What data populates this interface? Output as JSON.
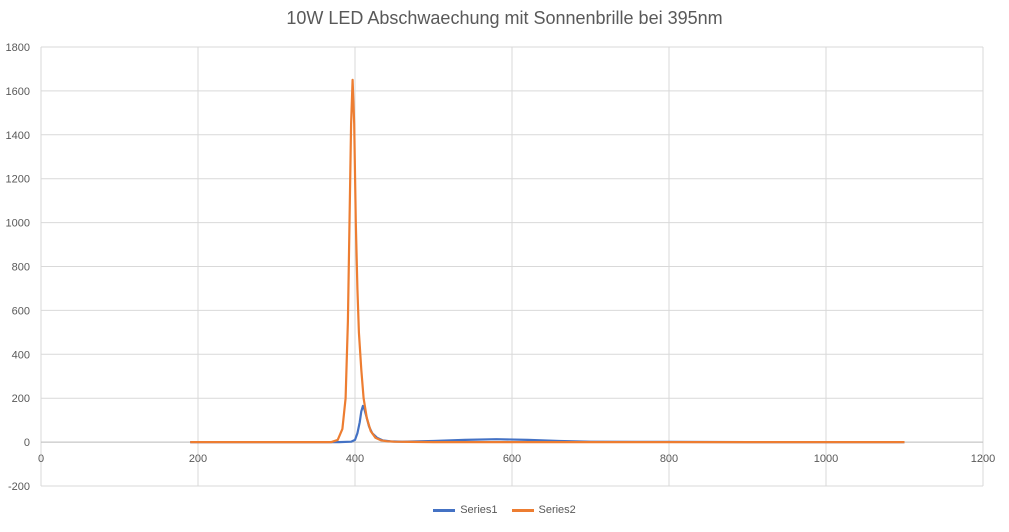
{
  "chart_data": {
    "type": "line",
    "title": "10W LED Abschwaechung mit Sonnenbrille bei 395nm",
    "xlabel": "",
    "ylabel": "",
    "xlim": [
      0,
      1200
    ],
    "ylim": [
      -200,
      1800
    ],
    "x_ticks": [
      0,
      200,
      400,
      600,
      800,
      1000,
      1200
    ],
    "y_ticks": [
      -200,
      0,
      200,
      400,
      600,
      800,
      1000,
      1200,
      1400,
      1600,
      1800
    ],
    "grid": true,
    "legend_position": "bottom",
    "series": [
      {
        "name": "Series1",
        "color": "#4472C4",
        "x": [
          190,
          300,
          380,
          395,
          400,
          403,
          406,
          408,
          410,
          412,
          415,
          418,
          422,
          428,
          435,
          445,
          460,
          500,
          540,
          580,
          620,
          660,
          700,
          800,
          900,
          1000,
          1100
        ],
        "y": [
          0,
          0,
          0,
          2,
          10,
          40,
          90,
          140,
          165,
          150,
          110,
          70,
          40,
          20,
          8,
          3,
          2,
          5,
          10,
          13,
          10,
          5,
          2,
          1,
          0,
          0,
          0
        ]
      },
      {
        "name": "Series2",
        "color": "#ED7D31",
        "x": [
          190,
          300,
          370,
          378,
          384,
          388,
          391,
          393,
          395,
          397,
          399,
          401,
          403,
          405,
          408,
          411,
          415,
          420,
          426,
          433,
          440,
          450,
          470,
          500,
          600,
          700,
          800,
          900,
          1000,
          1100
        ],
        "y": [
          0,
          0,
          0,
          10,
          60,
          200,
          550,
          1000,
          1450,
          1650,
          1450,
          1000,
          700,
          500,
          330,
          200,
          110,
          50,
          20,
          8,
          4,
          2,
          1,
          0,
          0,
          0,
          0,
          0,
          0,
          0
        ]
      }
    ]
  }
}
